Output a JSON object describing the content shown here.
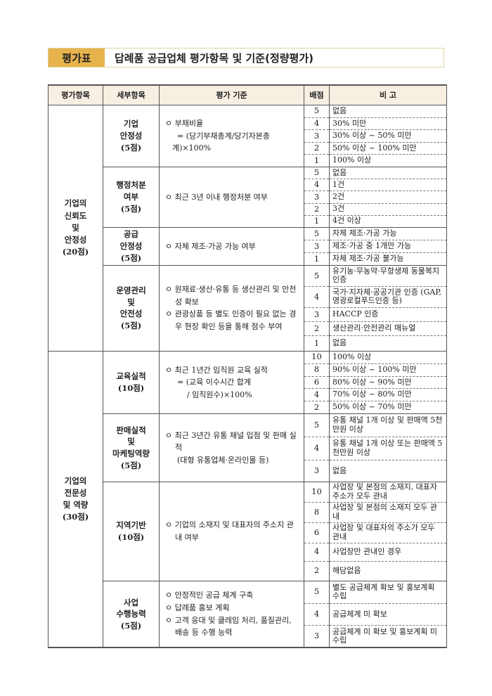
{
  "title": {
    "label": "평가표",
    "text": "답례품 공급업체 평가항목 및 기준(정량평가)"
  },
  "colors": {
    "label_bg": "#e6b34d",
    "header_bg": "#f6efe2"
  },
  "headers": [
    "평가항목",
    "세부항목",
    "평가 기준",
    "배점",
    "비 고"
  ],
  "sections": [
    {
      "name": "기업의\n신뢰도\n및\n안정성\n(20점)",
      "subs": [
        {
          "name": "기업\n안정성\n(5점)",
          "criteria": [
            "ㅇ 부채비율",
            "  = (당기부채총계/당기자본총계)×100%"
          ],
          "scores": [
            {
              "score": "5",
              "note": "없음"
            },
            {
              "score": "4",
              "note": "30% 미만"
            },
            {
              "score": "3",
              "note": "30% 이상 ~ 50% 미만"
            },
            {
              "score": "2",
              "note": "50% 이상 ~ 100% 미만"
            },
            {
              "score": "1",
              "note": "100% 이상"
            }
          ]
        },
        {
          "name": "행정처분\n여부\n(5점)",
          "criteria": [
            "ㅇ 최근 3년 이내 행정처분 여부"
          ],
          "scores": [
            {
              "score": "5",
              "note": "없음"
            },
            {
              "score": "4",
              "note": "1건"
            },
            {
              "score": "3",
              "note": "2건"
            },
            {
              "score": "2",
              "note": "3건"
            },
            {
              "score": "1",
              "note": "4건 이상"
            }
          ]
        },
        {
          "name": "공급\n안정성\n(5점)",
          "criteria": [
            "ㅇ 자체 제조·가공 가능 여부"
          ],
          "scores": [
            {
              "score": "5",
              "note": "자체 제조·가공 가능"
            },
            {
              "score": "3",
              "note": "제조·가공 중 1개만 가능"
            },
            {
              "score": "1",
              "note": "자체 제조·가공 불가능"
            }
          ]
        },
        {
          "name": "운영관리\n및\n안전성\n(5점)",
          "criteria": [
            "ㅇ 원재료·생산·유통 등 생산관리 및 안전성 확보",
            "ㅇ 관광상품 등 별도 인증이 필요 없는 경우 현장 확인 등을 통해 점수 부여"
          ],
          "scores": [
            {
              "score": "5",
              "note": "유기농·무농약·무항생제 동물복지 인증"
            },
            {
              "score": "4",
              "note": "국가·지자체·공공기관 인증 (GAP, 영광로컬푸드인증 등)"
            },
            {
              "score": "3",
              "note": "HACCP 인증"
            },
            {
              "score": "2",
              "note": "생산관리·안전관리 매뉴얼"
            },
            {
              "score": "1",
              "note": "없음"
            }
          ]
        }
      ]
    },
    {
      "name": "기업의\n전문성\n및 역량\n(30점)",
      "subs": [
        {
          "name": "교육실적\n(10점)",
          "criteria": [
            "ㅇ 최근 1년간 임직원 교육 실적",
            "  = (교육 이수시간 합계",
            "      / 임직원수)×100%"
          ],
          "scores": [
            {
              "score": "10",
              "note": "100% 이상"
            },
            {
              "score": "8",
              "note": "90% 이상 ~ 100% 미만"
            },
            {
              "score": "6",
              "note": "80% 이상 ~ 90% 미만"
            },
            {
              "score": "4",
              "note": "70% 이상 ~ 80% 미만"
            },
            {
              "score": "2",
              "note": "50% 이상 ~ 70% 미만"
            }
          ]
        },
        {
          "name": "판매실적\n및\n마케팅역량\n(5점)",
          "criteria": [
            "ㅇ 최근 3년간 유통 채널 입점 및 판매 실적",
            "  (대형 유통업체·온라인몰 등)"
          ],
          "scores": [
            {
              "score": "5",
              "note": "유통 채널 1개 이상 및 판매액 5천만원 이상"
            },
            {
              "score": "4",
              "note": "유통 채널 1개 이상 또는 판매액 5천만원 이상"
            },
            {
              "score": "3",
              "note": "없음"
            }
          ]
        },
        {
          "name": "지역기반\n(10점)",
          "criteria": [
            "ㅇ 기업의 소재지 및 대표자의 주소지 관내 여부"
          ],
          "scores": [
            {
              "score": "10",
              "note": "사업장 및 본점의 소재지, 대표자 주소가 모두 관내"
            },
            {
              "score": "8",
              "note": "사업장 및 본점의 소재지 모두 관내"
            },
            {
              "score": "6",
              "note": "사업장 및 대표자의 주소가 모두 관내"
            },
            {
              "score": "4",
              "note": "사업장만 관내인 경우"
            },
            {
              "score": "2",
              "note": "해당없음"
            }
          ]
        },
        {
          "name": "사업\n수행능력\n(5점)",
          "criteria": [
            "ㅇ 안정적인 공급 체계 구축",
            "ㅇ 답례품 홍보 계획",
            "ㅇ 고객 응대 및 클레임 처리, 품질관리, 배송 등 수행 능력"
          ],
          "scores": [
            {
              "score": "5",
              "note": "별도 공급체계 확보 및 홍보계획 수립"
            },
            {
              "score": "4",
              "note": "공급체계 미 확보"
            },
            {
              "score": "3",
              "note": "공급체계 미 확보 및 홍보계획 미 수립"
            }
          ]
        }
      ]
    }
  ]
}
